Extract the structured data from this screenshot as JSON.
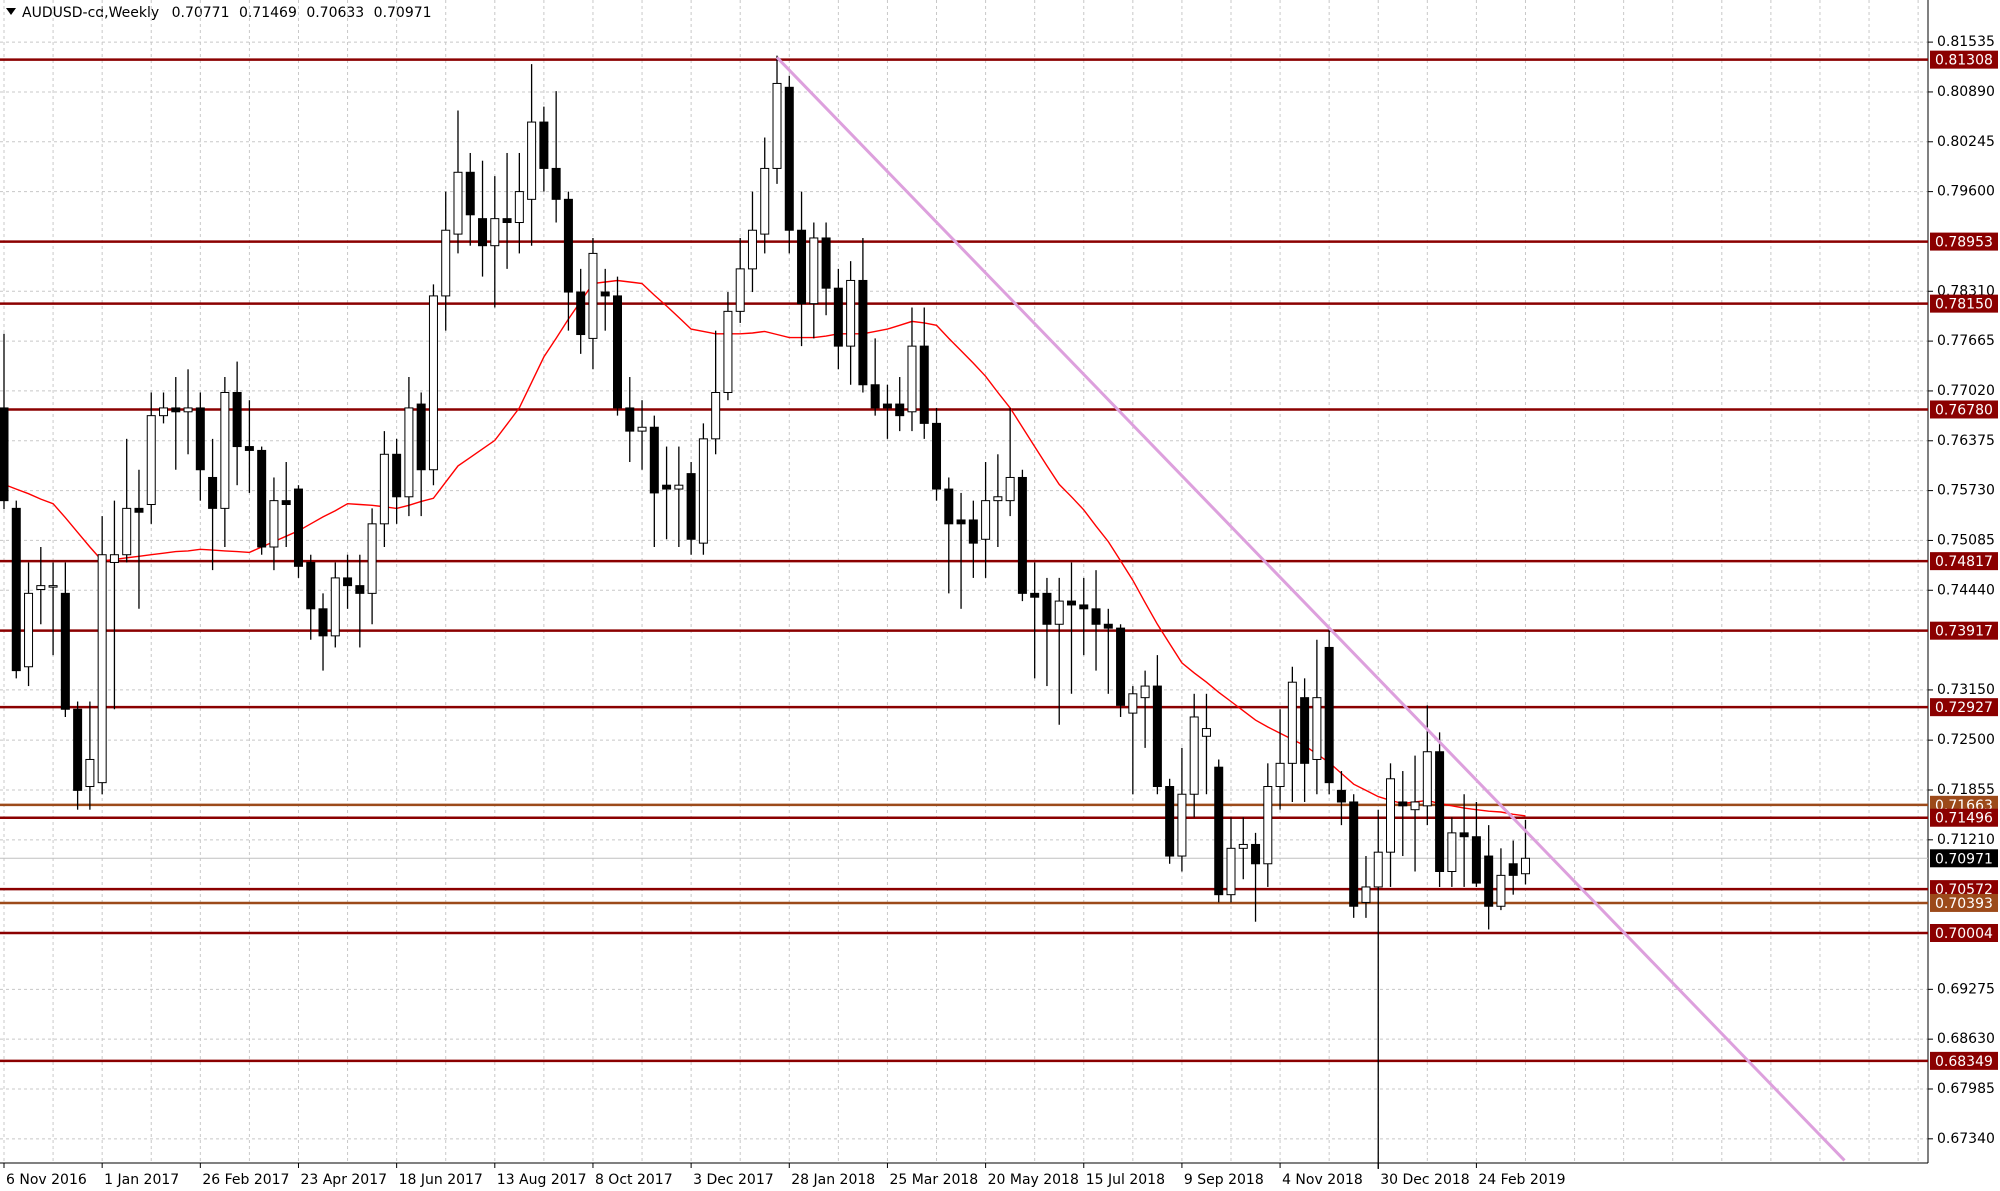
{
  "chart_data": {
    "type": "candlestick",
    "title": "AUDUSD-cd,Weekly",
    "categories": [
      "6 Nov 2016",
      null,
      null,
      null,
      null,
      null,
      null,
      null,
      "1 Jan 2017",
      null,
      null,
      null,
      null,
      null,
      null,
      null,
      "26 Feb 2017",
      null,
      null,
      null,
      null,
      null,
      null,
      null,
      "23 Apr 2017",
      null,
      null,
      null,
      null,
      null,
      null,
      null,
      "18 Jun 2017",
      null,
      null,
      null,
      null,
      null,
      null,
      null,
      "13 Aug 2017",
      null,
      null,
      null,
      null,
      null,
      null,
      null,
      "8 Oct 2017",
      null,
      null,
      null,
      null,
      null,
      null,
      null,
      "3 Dec 2017",
      null,
      null,
      null,
      null,
      null,
      null,
      null,
      "28 Jan 2018",
      null,
      null,
      null,
      null,
      null,
      null,
      null,
      "25 Mar 2018",
      null,
      null,
      null,
      null,
      null,
      null,
      null,
      "20 May 2018",
      null,
      null,
      null,
      null,
      null,
      null,
      null,
      "15 Jul 2018",
      null,
      null,
      null,
      null,
      null,
      null,
      null,
      "9 Sep 2018",
      null,
      null,
      null,
      null,
      null,
      null,
      null,
      "4 Nov 2018",
      null,
      null,
      null,
      null,
      null,
      null,
      null,
      "30 Dec 2018",
      null,
      null,
      null,
      null,
      null,
      null,
      null,
      "24 Feb 2019",
      null,
      null,
      null,
      null
    ],
    "open": [
      0.768,
      0.755,
      0.7345,
      0.7445,
      0.745,
      0.744,
      0.729,
      0.719,
      0.7195,
      0.748,
      0.749,
      0.755,
      0.7555,
      0.767,
      0.768,
      0.7675,
      0.768,
      0.759,
      0.755,
      0.77,
      0.763,
      0.7625,
      0.75,
      0.756,
      0.7575,
      0.748,
      0.742,
      0.7385,
      0.746,
      0.745,
      0.744,
      0.753,
      0.762,
      0.7565,
      0.7685,
      0.76,
      0.7825,
      0.7905,
      0.7985,
      0.7925,
      0.789,
      0.7925,
      0.792,
      0.795,
      0.805,
      0.799,
      0.795,
      0.783,
      0.777,
      0.783,
      0.7825,
      0.768,
      0.765,
      0.7655,
      0.758,
      0.7575,
      0.7595,
      0.7505,
      0.764,
      0.77,
      0.7805,
      0.786,
      0.7905,
      0.799,
      0.8095,
      0.791,
      0.7815,
      0.79,
      0.7835,
      0.776,
      0.7845,
      0.771,
      0.7685,
      0.7685,
      0.7675,
      0.776,
      0.766,
      0.7575,
      0.7535,
      0.7535,
      0.751,
      0.756,
      0.756,
      0.759,
      0.744,
      0.744,
      0.74,
      0.743,
      0.7425,
      0.742,
      0.74,
      0.7395,
      0.7285,
      0.7305,
      0.732,
      0.719,
      0.71,
      0.718,
      0.7255,
      0.7215,
      0.705,
      0.711,
      0.7115,
      0.709,
      0.719,
      0.722,
      0.7305,
      0.7225,
      0.737,
      0.7185,
      0.717,
      0.704,
      0.706,
      0.7105,
      0.717,
      0.716,
      0.7165,
      0.7235,
      0.708,
      0.713,
      0.7125,
      0.71,
      0.7035,
      0.709,
      0.70771
    ],
    "high": [
      0.7776,
      0.756,
      0.748,
      0.75,
      0.748,
      0.748,
      0.73,
      0.73,
      0.754,
      0.756,
      0.764,
      0.76,
      0.77,
      0.77,
      0.772,
      0.773,
      0.77,
      0.764,
      0.772,
      0.774,
      0.769,
      0.763,
      0.759,
      0.761,
      0.758,
      0.749,
      0.744,
      0.748,
      0.749,
      0.749,
      0.755,
      0.765,
      0.764,
      0.772,
      0.77,
      0.784,
      0.796,
      0.8065,
      0.801,
      0.8,
      0.798,
      0.801,
      0.801,
      0.8125,
      0.807,
      0.809,
      0.796,
      0.786,
      0.79,
      0.786,
      0.785,
      0.772,
      0.769,
      0.767,
      0.763,
      0.763,
      0.761,
      0.766,
      0.778,
      0.783,
      0.79,
      0.796,
      0.803,
      0.8136,
      0.811,
      0.796,
      0.792,
      0.792,
      0.786,
      0.787,
      0.79,
      0.777,
      0.771,
      0.772,
      0.781,
      0.781,
      0.768,
      0.759,
      0.757,
      0.756,
      0.761,
      0.762,
      0.768,
      0.76,
      0.748,
      0.746,
      0.746,
      0.748,
      0.746,
      0.747,
      0.742,
      0.74,
      0.732,
      0.734,
      0.736,
      0.72,
      0.724,
      0.731,
      0.731,
      0.7225,
      0.715,
      0.715,
      0.713,
      0.722,
      0.729,
      0.7345,
      0.733,
      0.738,
      0.7395,
      0.721,
      0.718,
      0.71,
      0.716,
      0.722,
      0.721,
      0.723,
      0.7295,
      0.726,
      0.715,
      0.718,
      0.717,
      0.714,
      0.711,
      0.712,
      0.71469
    ],
    "low": [
      0.7549,
      0.733,
      0.732,
      0.74,
      0.736,
      0.728,
      0.716,
      0.716,
      0.718,
      0.729,
      0.748,
      0.742,
      0.753,
      0.766,
      0.76,
      0.762,
      0.756,
      0.747,
      0.75,
      0.758,
      0.757,
      0.749,
      0.747,
      0.75,
      0.746,
      0.738,
      0.734,
      0.737,
      0.742,
      0.737,
      0.74,
      0.75,
      0.753,
      0.754,
      0.754,
      0.758,
      0.778,
      0.788,
      0.789,
      0.785,
      0.781,
      0.786,
      0.788,
      0.789,
      0.796,
      0.792,
      0.778,
      0.775,
      0.773,
      0.778,
      0.767,
      0.761,
      0.76,
      0.75,
      0.751,
      0.75,
      0.749,
      0.749,
      0.762,
      0.769,
      0.779,
      0.783,
      0.788,
      0.797,
      0.788,
      0.776,
      0.777,
      0.78,
      0.773,
      0.771,
      0.77,
      0.767,
      0.764,
      0.765,
      0.765,
      0.764,
      0.756,
      0.744,
      0.742,
      0.746,
      0.746,
      0.75,
      0.754,
      0.743,
      0.733,
      0.732,
      0.727,
      0.731,
      0.736,
      0.734,
      0.731,
      0.728,
      0.718,
      0.724,
      0.718,
      0.709,
      0.708,
      0.715,
      0.718,
      0.704,
      0.704,
      0.707,
      0.7015,
      0.706,
      0.716,
      0.717,
      0.717,
      0.718,
      0.718,
      0.714,
      0.702,
      0.702,
      0.6695,
      0.706,
      0.71,
      0.708,
      0.714,
      0.706,
      0.706,
      0.706,
      0.706,
      0.7005,
      0.703,
      0.705,
      0.70633
    ],
    "close": [
      0.756,
      0.734,
      0.744,
      0.745,
      0.745,
      0.729,
      0.7185,
      0.7225,
      0.749,
      0.749,
      0.755,
      0.7545,
      0.767,
      0.768,
      0.7675,
      0.768,
      0.76,
      0.755,
      0.77,
      0.763,
      0.7625,
      0.75,
      0.756,
      0.7555,
      0.7475,
      0.742,
      0.7385,
      0.746,
      0.745,
      0.744,
      0.753,
      0.762,
      0.7565,
      0.768,
      0.76,
      0.7825,
      0.791,
      0.7985,
      0.793,
      0.789,
      0.7925,
      0.792,
      0.796,
      0.805,
      0.799,
      0.795,
      0.783,
      0.7775,
      0.788,
      0.7825,
      0.768,
      0.765,
      0.7655,
      0.757,
      0.7575,
      0.758,
      0.751,
      0.764,
      0.77,
      0.7805,
      0.786,
      0.791,
      0.799,
      0.81,
      0.791,
      0.7815,
      0.79,
      0.7835,
      0.776,
      0.7845,
      0.771,
      0.768,
      0.768,
      0.767,
      0.776,
      0.766,
      0.7575,
      0.753,
      0.753,
      0.7505,
      0.756,
      0.7565,
      0.759,
      0.744,
      0.7435,
      0.74,
      0.743,
      0.7425,
      0.742,
      0.74,
      0.7395,
      0.7295,
      0.731,
      0.732,
      0.719,
      0.71,
      0.718,
      0.728,
      0.7265,
      0.705,
      0.711,
      0.7115,
      0.709,
      0.719,
      0.722,
      0.7325,
      0.722,
      0.7305,
      0.7195,
      0.717,
      0.7035,
      0.706,
      0.7105,
      0.72,
      0.7165,
      0.717,
      0.7235,
      0.708,
      0.713,
      0.7125,
      0.7065,
      0.7035,
      0.7075,
      0.7075,
      0.70971
    ],
    "up_color": "#ffffff",
    "down_color": "#000000",
    "ma": {
      "color": "#ff0000",
      "values": [
        0.7581,
        0.7575,
        0.7569,
        0.7562,
        0.7556,
        0.7538,
        0.7519,
        0.75,
        0.7482,
        0.7484,
        0.7486,
        0.7488,
        0.749,
        0.7492,
        0.7494,
        0.7495,
        0.7497,
        0.7496,
        0.7495,
        0.7494,
        0.7493,
        0.75,
        0.7507,
        0.7514,
        0.7521,
        0.753,
        0.7539,
        0.7547,
        0.7556,
        0.7555,
        0.7554,
        0.7552,
        0.755,
        0.7554,
        0.7559,
        0.7563,
        0.7584,
        0.7605,
        0.7616,
        0.7627,
        0.7638,
        0.7659,
        0.768,
        0.7713,
        0.7746,
        0.777,
        0.7795,
        0.7818,
        0.7841,
        0.7843,
        0.7845,
        0.7843,
        0.7841,
        0.7826,
        0.7812,
        0.7797,
        0.7782,
        0.7779,
        0.7776,
        0.7776,
        0.7776,
        0.7777,
        0.7779,
        0.7775,
        0.7771,
        0.7771,
        0.7771,
        0.7773,
        0.7776,
        0.7776,
        0.7776,
        0.7779,
        0.7782,
        0.7787,
        0.7792,
        0.779,
        0.7787,
        0.777,
        0.7754,
        0.7738,
        0.7721,
        0.77,
        0.768,
        0.7655,
        0.763,
        0.7605,
        0.7581,
        0.7565,
        0.7548,
        0.7527,
        0.7507,
        0.7482,
        0.7457,
        0.7428,
        0.74,
        0.7375,
        0.735,
        0.7337,
        0.7325,
        0.7312,
        0.73,
        0.7288,
        0.7276,
        0.7267,
        0.7259,
        0.7251,
        0.7243,
        0.7232,
        0.7221,
        0.7207,
        0.7193,
        0.7185,
        0.7177,
        0.7172,
        0.7168,
        0.717,
        0.7172,
        0.7168,
        0.7165,
        0.7162,
        0.716,
        0.7158,
        0.7157,
        0.7154,
        0.7152
      ]
    },
    "trendline": {
      "color": "#dda0dd",
      "from": [
        63,
        0.81337
      ],
      "to": [
        150,
        0.6706
      ]
    },
    "levels": [
      {
        "value": 0.81308,
        "color": "#8b0000"
      },
      {
        "value": 0.78953,
        "color": "#8b0000"
      },
      {
        "value": 0.7815,
        "label": "0.78150",
        "color": "#8b0000"
      },
      {
        "value": 0.7678,
        "label": "0.76780",
        "color": "#8b0000"
      },
      {
        "value": 0.74817,
        "color": "#8b0000"
      },
      {
        "value": 0.73917,
        "color": "#8b0000"
      },
      {
        "value": 0.72927,
        "color": "#8b0000"
      },
      {
        "value": 0.71663,
        "color": "#9c4a1a"
      },
      {
        "value": 0.71496,
        "color": "#8b0000"
      },
      {
        "value": 0.70572,
        "color": "#8b0000"
      },
      {
        "value": 0.70393,
        "color": "#9c4a1a"
      },
      {
        "value": 0.70004,
        "color": "#8b0000"
      },
      {
        "value": 0.68349,
        "color": "#8b0000"
      }
    ],
    "current_price": {
      "value": 0.70971,
      "color": "#000000"
    },
    "ylim": [
      0.67027,
      0.8208
    ],
    "yticks": [
      {
        "value": 0.81535,
        "label": "0.81535"
      },
      {
        "value": 0.8089,
        "label": "0.80890"
      },
      {
        "value": 0.80245,
        "label": "0.80245"
      },
      {
        "value": 0.796,
        "label": "0.79600"
      },
      {
        "value": 0.7831,
        "label": "0.78310"
      },
      {
        "value": 0.77665,
        "label": "0.77665"
      },
      {
        "value": 0.7702,
        "label": "0.77020"
      },
      {
        "value": 0.76375,
        "label": "0.76375"
      },
      {
        "value": 0.7573,
        "label": "0.75730"
      },
      {
        "value": 0.75085,
        "label": "0.75085"
      },
      {
        "value": 0.7444,
        "label": "0.74440"
      },
      {
        "value": 0.7315,
        "label": "0.73150"
      },
      {
        "value": 0.725,
        "label": "0.72500"
      },
      {
        "value": 0.71855,
        "label": "0.71855"
      },
      {
        "value": 0.7121,
        "label": "0.71210"
      },
      {
        "value": 0.69275,
        "label": "0.69275"
      },
      {
        "value": 0.6863,
        "label": "0.68630"
      },
      {
        "value": 0.67985,
        "label": "0.67985"
      },
      {
        "value": 0.6734,
        "label": "0.67340"
      }
    ],
    "grid": true
  }
}
